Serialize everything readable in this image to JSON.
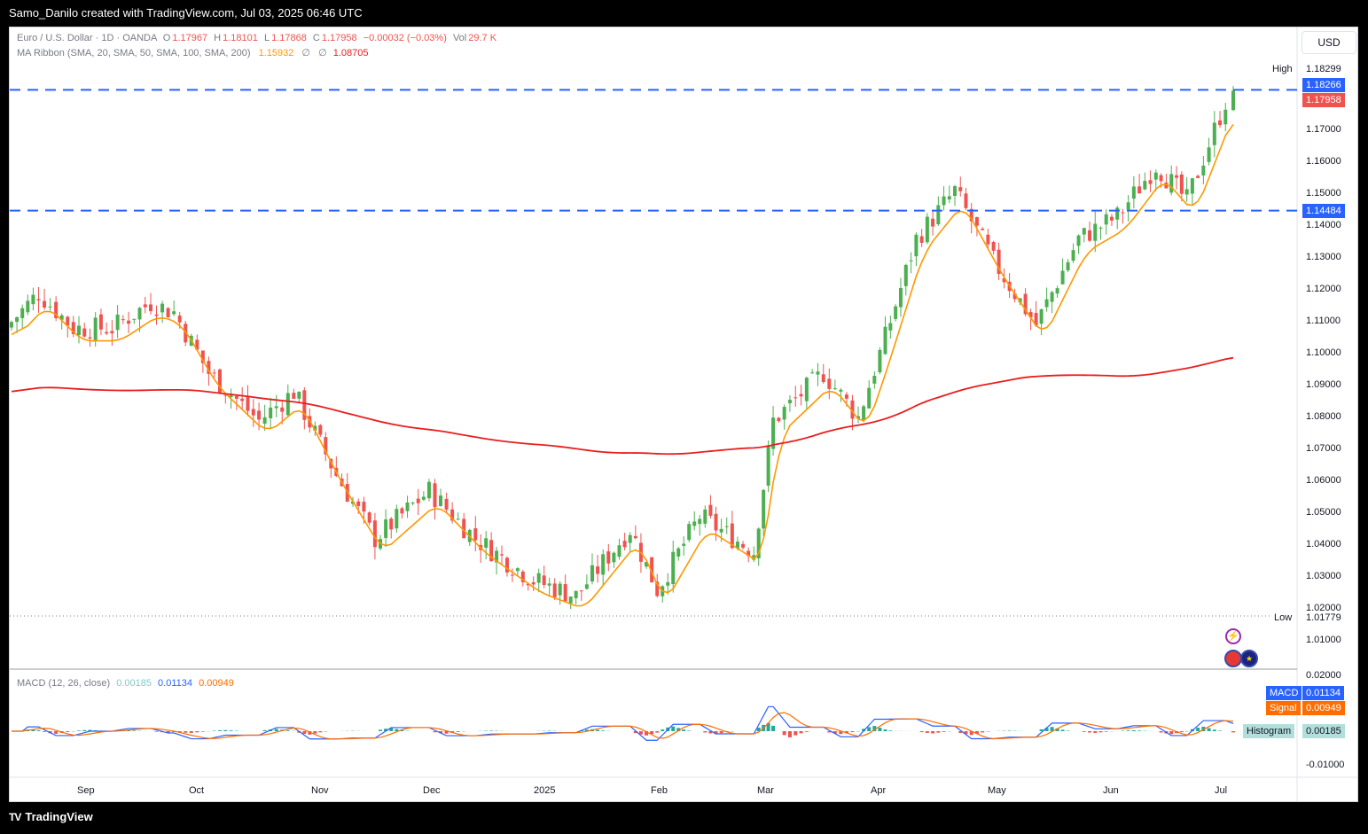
{
  "header": {
    "credit": "Samo_Danilo created with TradingView.com, Jul 03, 2025 06:46 UTC"
  },
  "legend": {
    "symbol": "Euro / U.S. Dollar · 1D · OANDA",
    "open_label": "O",
    "open": "1.17967",
    "high_label": "H",
    "high": "1.18101",
    "low_label": "L",
    "low": "1.17868",
    "close_label": "C",
    "close": "1.17958",
    "change": "−0.00032 (−0.03%)",
    "vol_label": "Vol",
    "vol": "29.7 K",
    "ma_title": "MA Ribbon (SMA, 20, SMA, 50, SMA, 100, SMA, 200)",
    "ma20": "1.15932",
    "ma50": "∅",
    "ma100": "∅",
    "ma200": "1.08705",
    "macd_title": "MACD (12, 26, close)",
    "macd_hist": "0.00185",
    "macd_line": "0.01134",
    "macd_signal": "0.00949"
  },
  "currency": "USD",
  "price_axis": {
    "ticks": [
      "1.17000",
      "1.16000",
      "1.15000",
      "1.14000",
      "1.13000",
      "1.12000",
      "1.11000",
      "1.10000",
      "1.09000",
      "1.08000",
      "1.07000",
      "1.06000",
      "1.05000",
      "1.04000",
      "1.03000",
      "1.02000",
      "1.01000"
    ],
    "high_label": "High",
    "high_value": "1.18299",
    "low_label": "Low",
    "low_value": "1.01779",
    "line1": "1.18266",
    "last": "1.17958",
    "line2": "1.14484"
  },
  "macd_axis": {
    "ticks": [
      "0.02000",
      "-0.01000"
    ],
    "macd_label": "MACD",
    "macd_value": "0.01134",
    "signal_label": "Signal",
    "signal_value": "0.00949",
    "hist_label": "Histogram",
    "hist_value": "0.00185"
  },
  "time_axis": [
    "Sep",
    "Oct",
    "Nov",
    "Dec",
    "2025",
    "Feb",
    "Mar",
    "Apr",
    "May",
    "Jun",
    "Jul"
  ],
  "footer": {
    "brand": "TradingView",
    "logo": "TV"
  },
  "colors": {
    "up": "#26a69a",
    "up_dark": "#4caf50",
    "down": "#ef5350",
    "ma20": "#ff9800",
    "ma200": "#e91e1e",
    "hline": "#2962ff",
    "macd": "#2962ff",
    "signal": "#ff6d00"
  },
  "chart_data": {
    "type": "candlestick",
    "series_close_approx": [
      {
        "date": "2024-08-20",
        "close": 1.11
      },
      {
        "date": "2024-08-27",
        "close": 1.119
      },
      {
        "date": "2024-09-05",
        "close": 1.108
      },
      {
        "date": "2024-09-15",
        "close": 1.108
      },
      {
        "date": "2024-09-25",
        "close": 1.116
      },
      {
        "date": "2024-10-01",
        "close": 1.113
      },
      {
        "date": "2024-10-10",
        "close": 1.094
      },
      {
        "date": "2024-10-23",
        "close": 1.079
      },
      {
        "date": "2024-11-01",
        "close": 1.088
      },
      {
        "date": "2024-11-12",
        "close": 1.062
      },
      {
        "date": "2024-11-22",
        "close": 1.042
      },
      {
        "date": "2024-12-06",
        "close": 1.057
      },
      {
        "date": "2024-12-18",
        "close": 1.042
      },
      {
        "date": "2025-01-02",
        "close": 1.029
      },
      {
        "date": "2025-01-13",
        "close": 1.024
      },
      {
        "date": "2025-01-27",
        "close": 1.045
      },
      {
        "date": "2025-02-03",
        "close": 1.026
      },
      {
        "date": "2025-02-14",
        "close": 1.049
      },
      {
        "date": "2025-02-28",
        "close": 1.038
      },
      {
        "date": "2025-03-05",
        "close": 1.079
      },
      {
        "date": "2025-03-18",
        "close": 1.094
      },
      {
        "date": "2025-03-27",
        "close": 1.08
      },
      {
        "date": "2025-04-03",
        "close": 1.105
      },
      {
        "date": "2025-04-11",
        "close": 1.136
      },
      {
        "date": "2025-04-21",
        "close": 1.151
      },
      {
        "date": "2025-05-01",
        "close": 1.129
      },
      {
        "date": "2025-05-12",
        "close": 1.109
      },
      {
        "date": "2025-05-23",
        "close": 1.136
      },
      {
        "date": "2025-06-02",
        "close": 1.143
      },
      {
        "date": "2025-06-12",
        "close": 1.159
      },
      {
        "date": "2025-06-20",
        "close": 1.148
      },
      {
        "date": "2025-06-30",
        "close": 1.179
      },
      {
        "date": "2025-07-02",
        "close": 1.1796
      }
    ],
    "horizontal_lines": [
      1.18266,
      1.14484
    ],
    "high": 1.18299,
    "low": 1.01779,
    "last": 1.17958
  }
}
